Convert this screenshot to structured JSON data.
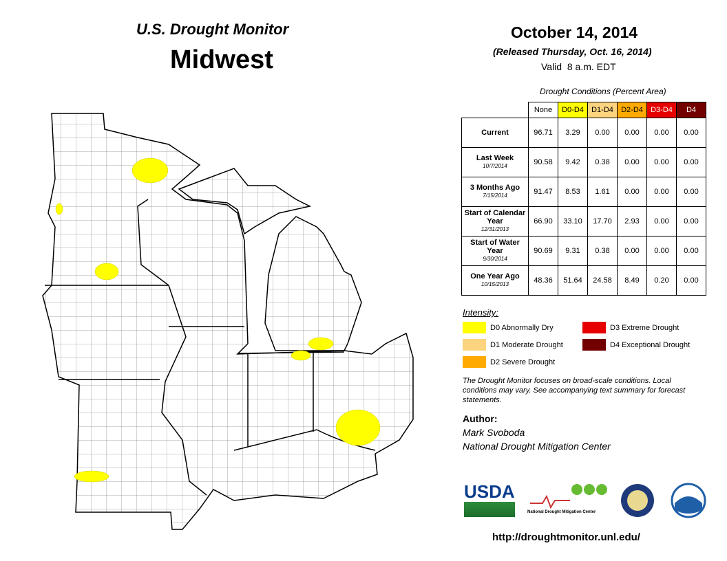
{
  "header": {
    "title": "U.S. Drought Monitor",
    "region": "Midwest",
    "date": "October 14, 2014",
    "released": "(Released Thursday, Oct. 16, 2014)",
    "valid": "Valid  8 a.m. EDT"
  },
  "table": {
    "caption": "Drought Conditions (Percent Area)",
    "columns": [
      {
        "label": "None",
        "color": "#ffffff",
        "text": "#000000"
      },
      {
        "label": "D0-D4",
        "color": "#ffff00",
        "text": "#000000"
      },
      {
        "label": "D1-D4",
        "color": "#fcd37f",
        "text": "#000000"
      },
      {
        "label": "D2-D4",
        "color": "#ffaa00",
        "text": "#000000"
      },
      {
        "label": "D3-D4",
        "color": "#e60000",
        "text": "#ffffff"
      },
      {
        "label": "D4",
        "color": "#730000",
        "text": "#ffffff"
      }
    ],
    "rows": [
      {
        "label": "Current",
        "values": [
          "96.71",
          "3.29",
          "0.00",
          "0.00",
          "0.00",
          "0.00"
        ]
      },
      {
        "label": "Last Week",
        "date": "10/7/2014",
        "values": [
          "90.58",
          "9.42",
          "0.38",
          "0.00",
          "0.00",
          "0.00"
        ]
      },
      {
        "label": "3 Months Ago",
        "date": "7/15/2014",
        "values": [
          "91.47",
          "8.53",
          "1.61",
          "0.00",
          "0.00",
          "0.00"
        ]
      },
      {
        "label": "Start of Calendar Year",
        "date": "12/31/2013",
        "values": [
          "66.90",
          "33.10",
          "17.70",
          "2.93",
          "0.00",
          "0.00"
        ]
      },
      {
        "label": "Start of Water Year",
        "date": "9/30/2014",
        "values": [
          "90.69",
          "9.31",
          "0.38",
          "0.00",
          "0.00",
          "0.00"
        ]
      },
      {
        "label": "One Year Ago",
        "date": "10/15/2013",
        "values": [
          "48.36",
          "51.64",
          "24.58",
          "8.49",
          "0.20",
          "0.00"
        ]
      }
    ]
  },
  "legend": {
    "title": "Intensity:",
    "items": [
      {
        "label": "D0 Abnormally Dry",
        "color": "#ffff00"
      },
      {
        "label": "D1 Moderate Drought",
        "color": "#fcd37f"
      },
      {
        "label": "D2 Severe Drought",
        "color": "#ffaa00"
      },
      {
        "label": "D3 Extreme Drought",
        "color": "#e60000"
      },
      {
        "label": "D4 Exceptional Drought",
        "color": "#730000"
      }
    ]
  },
  "note": "The Drought Monitor focuses on broad-scale conditions. Local conditions may vary. See accompanying text summary for forecast statements.",
  "author": {
    "heading": "Author:",
    "name": "Mark Svoboda",
    "org": "National Drought Mitigation Center"
  },
  "logos": {
    "usda": "USDA",
    "ndmc": "National Drought Mitigation Center"
  },
  "url": "http://droughtmonitor.unl.edu/"
}
